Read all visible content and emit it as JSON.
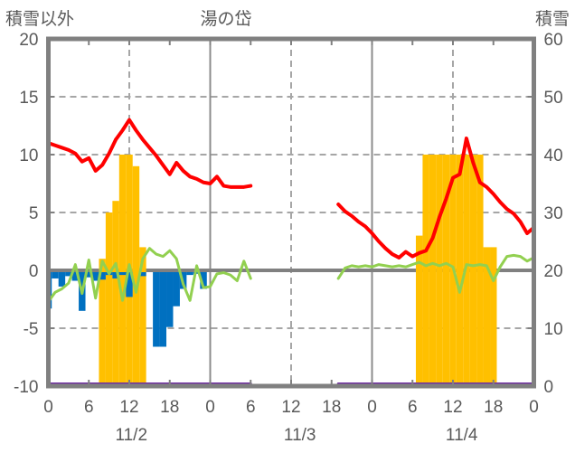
{
  "header": {
    "left_axis_title": "積雪以外",
    "chart_title": "湯の岱",
    "right_axis_title": "積雪"
  },
  "colors": {
    "red_line": "#FF0000",
    "green_line": "#92D050",
    "snow_bars": "#FFC000",
    "blue_bars": "#0070C0",
    "purple_line": "#7030A0",
    "frame": "#808080",
    "grid_dashed": "#A6A6A6",
    "text": "#595959"
  },
  "chart_data": {
    "type": "line",
    "title": "湯の岱",
    "left_axis": {
      "title": "積雪以外",
      "min": -10,
      "max": 20,
      "ticks": [
        20,
        15,
        10,
        5,
        0,
        -5,
        -10
      ],
      "dashed_gridlines": [
        15,
        10,
        5,
        -5
      ],
      "zero_line": 0
    },
    "right_axis": {
      "title": "積雪",
      "min": 0,
      "max": 60,
      "ticks": [
        60,
        50,
        40,
        30,
        20,
        10,
        0
      ]
    },
    "x_axis": {
      "unit": "hour",
      "range_hours": [
        0,
        72
      ],
      "tick_interval": 6,
      "tick_labels": [
        "0",
        "6",
        "12",
        "18",
        "0",
        "6",
        "12",
        "18",
        "0",
        "6",
        "12",
        "18",
        "0"
      ],
      "date_labels": [
        "11/2",
        "11/3",
        "11/4"
      ],
      "date_label_hours": [
        12.3,
        37.3,
        61.3
      ],
      "dashed_vertical_gridlines": [
        12,
        36,
        60
      ],
      "solid_vertical_gridlines": [
        24,
        48
      ]
    },
    "data_gap_hours": [
      31,
      43
    ],
    "series": [
      {
        "name": "snow-depth-bars",
        "type": "bar",
        "axis": "right",
        "color": "#FFC000",
        "bars": [
          [
            8,
            22
          ],
          [
            9,
            30
          ],
          [
            10,
            32
          ],
          [
            11,
            40
          ],
          [
            12,
            40
          ],
          [
            13,
            38
          ],
          [
            14,
            24
          ],
          [
            55,
            26
          ],
          [
            56,
            40
          ],
          [
            57,
            40
          ],
          [
            58,
            40
          ],
          [
            59,
            40
          ],
          [
            60,
            40
          ],
          [
            61,
            40
          ],
          [
            62,
            40
          ],
          [
            63,
            40
          ],
          [
            64,
            40
          ],
          [
            65,
            24
          ],
          [
            66,
            24
          ]
        ]
      },
      {
        "name": "blue-bars",
        "type": "bar",
        "axis": "left",
        "color": "#0070C0",
        "bars": [
          [
            0,
            -3.3
          ],
          [
            1,
            -0.7
          ],
          [
            2,
            -1.4
          ],
          [
            3,
            -0.5
          ],
          [
            4,
            -0.9
          ],
          [
            5,
            -3.5
          ],
          [
            6,
            -0.6
          ],
          [
            7,
            -0.9
          ],
          [
            8,
            -0.8
          ],
          [
            9,
            -0.4
          ],
          [
            10,
            -0.7
          ],
          [
            11,
            -0.4
          ],
          [
            12,
            -2.3
          ],
          [
            14,
            -0.5
          ],
          [
            16,
            -6.6
          ],
          [
            17,
            -6.6
          ],
          [
            18,
            -4.9
          ],
          [
            19,
            -3.1
          ],
          [
            20,
            -1.6
          ],
          [
            21,
            -0.4
          ],
          [
            22,
            -0.3
          ],
          [
            23,
            -1.6
          ]
        ]
      },
      {
        "name": "purple-line",
        "type": "line",
        "axis": "right",
        "color": "#7030A0",
        "segments": [
          {
            "start_hour": 0,
            "end_hour": 30,
            "constant_value": 0
          },
          {
            "start_hour": 43,
            "end_hour": 72,
            "constant_value": 0
          }
        ]
      },
      {
        "name": "green-line",
        "type": "line",
        "axis": "left",
        "color": "#92D050",
        "segments": [
          {
            "start_hour": 0,
            "values": [
              -2.7,
              -1.9,
              -1.6,
              -1.1,
              0.5,
              -2.0,
              0.9,
              -2.4,
              0.8,
              -0.3,
              0.6,
              -2.6,
              0.5,
              -1.9,
              1.0,
              1.9,
              1.4,
              1.2,
              1.7,
              1.0,
              -1.2,
              -2.6,
              0.4,
              -1.5,
              -1.4,
              -0.3,
              -0.2,
              -0.4,
              -0.9,
              0.8,
              -0.7
            ]
          },
          {
            "start_hour": 43,
            "values": [
              -0.7,
              0.2,
              0.4,
              0.3,
              0.4,
              0.3,
              0.5,
              0.4,
              0.3,
              0.4,
              0.3,
              0.5,
              0.7,
              0.4,
              0.6,
              0.4,
              0.6,
              0.3,
              -1.9,
              0.5,
              0.4,
              0.5,
              0.4,
              -0.9,
              0.3,
              1.2,
              1.3,
              1.2,
              0.8,
              1.1
            ]
          }
        ]
      },
      {
        "name": "red-line",
        "type": "line",
        "axis": "left",
        "color": "#FF0000",
        "segments": [
          {
            "start_hour": 0,
            "values": [
              11.0,
              10.8,
              10.6,
              10.4,
              10.1,
              9.4,
              9.7,
              8.6,
              9.1,
              10.1,
              11.3,
              12.1,
              13.0,
              12.1,
              11.3,
              10.6,
              9.9,
              9.1,
              8.3,
              9.3,
              8.6,
              8.1,
              7.9,
              7.6,
              7.5,
              8.1,
              7.3,
              7.2,
              7.2,
              7.2,
              7.3
            ]
          },
          {
            "start_hour": 43,
            "values": [
              5.7,
              5.1,
              4.7,
              4.2,
              3.8,
              3.2,
              2.5,
              1.9,
              1.4,
              1.1,
              1.6,
              1.2,
              1.5,
              1.7,
              2.8,
              4.6,
              6.2,
              8.0,
              8.3,
              11.4,
              9.3,
              7.6,
              7.2,
              6.6,
              5.9,
              5.3,
              4.9,
              4.2,
              3.2,
              3.7
            ]
          }
        ]
      }
    ]
  }
}
